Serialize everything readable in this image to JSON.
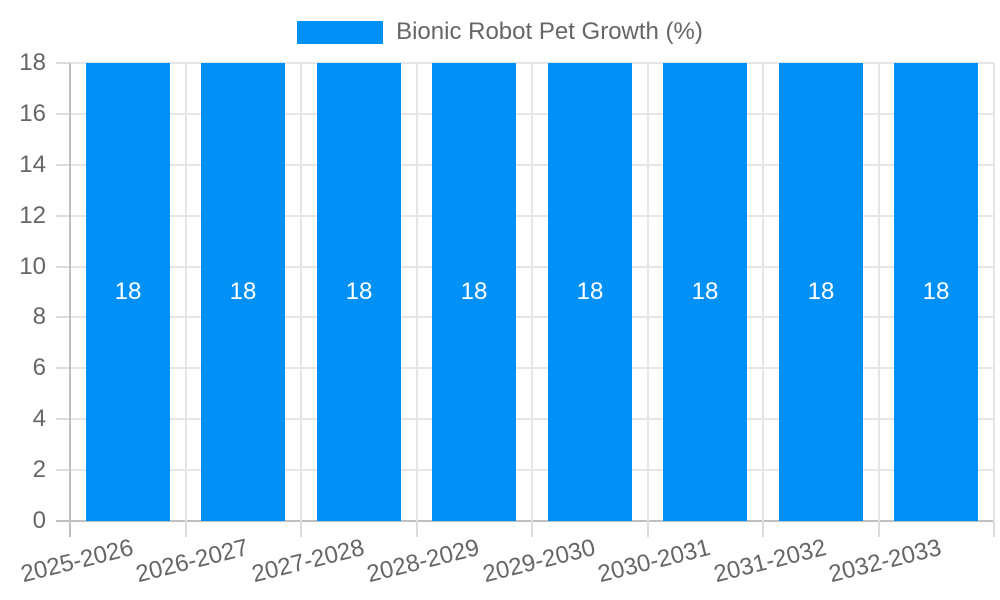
{
  "chart_data": {
    "type": "bar",
    "title": "Bionic Robot Pet Growth (%)",
    "legend": {
      "position": "top",
      "label": "Bionic Robot Pet Growth (%)"
    },
    "categories": [
      "2025-2026",
      "2026-2027",
      "2027-2028",
      "2028-2029",
      "2029-2030",
      "2030-2031",
      "2031-2032",
      "2032-2033"
    ],
    "values": [
      18,
      18,
      18,
      18,
      18,
      18,
      18,
      18
    ],
    "value_labels": [
      "18",
      "18",
      "18",
      "18",
      "18",
      "18",
      "18",
      "18"
    ],
    "xlabel": "",
    "ylabel": "",
    "ylim": [
      0,
      18
    ],
    "yticks": [
      0,
      2,
      4,
      6,
      8,
      10,
      12,
      14,
      16,
      18
    ],
    "grid": "on",
    "x_label_rotation_deg": -14
  },
  "colors": {
    "bar": "#0190f5",
    "grid": "#e6e6e6",
    "axis_line": "#bfbfbf",
    "tick_mark": "#dcdcdc",
    "axis_text": "#666666",
    "value_label_text": "#ffffff",
    "background": "#ffffff"
  }
}
